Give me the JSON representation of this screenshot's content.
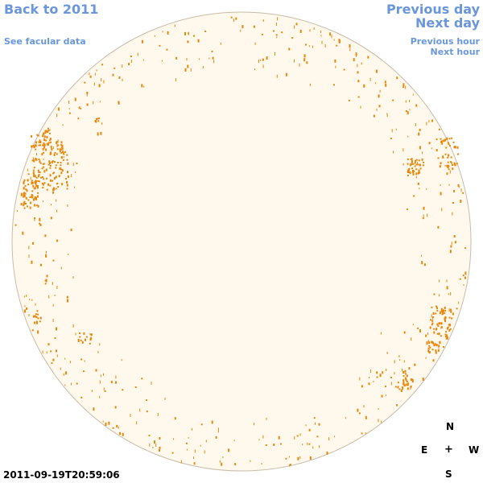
{
  "nav": {
    "back": "Back to 2011",
    "facular": "See facular data",
    "prev_day": "Previous day",
    "next_day": "Next day",
    "prev_hour": "Previous hour",
    "next_hour": "Next hour"
  },
  "compass": {
    "north": "N",
    "east": "E",
    "center": "+",
    "west": "W",
    "south": "S"
  },
  "timestamp": "2011-09-19T20:59:06",
  "colors": {
    "link": "#6a96dc",
    "disk_fill": "#fff8ec",
    "disk_stroke": "#c8bca8",
    "spot": "#e8870a"
  },
  "icons": {
    "disk": "solar-disk-icon",
    "compass": "compass-rose-icon"
  }
}
